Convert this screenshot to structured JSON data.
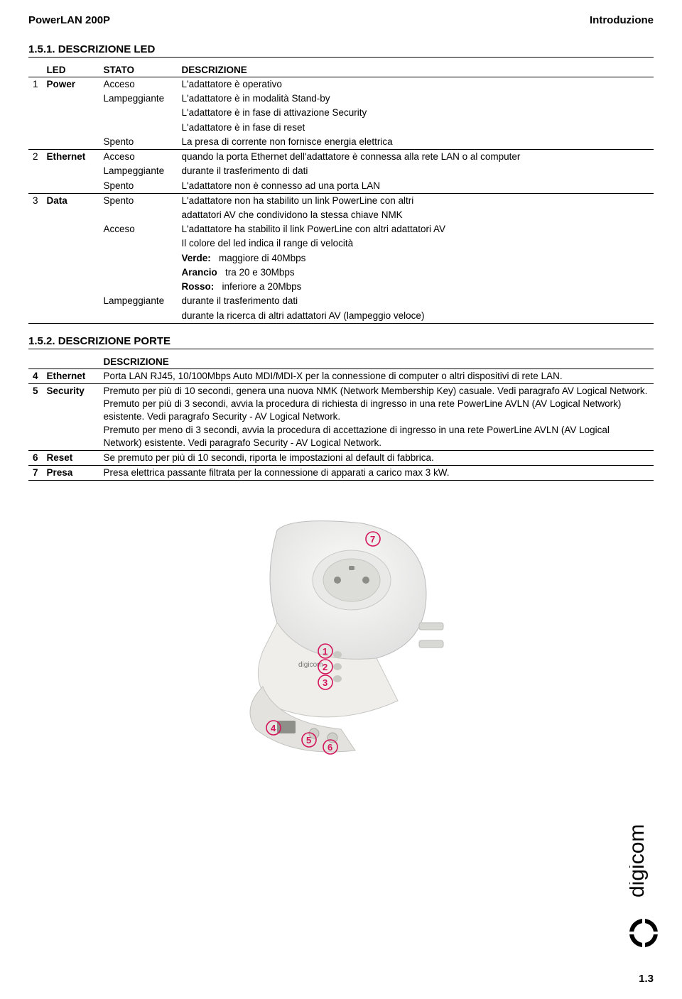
{
  "header": {
    "left": "PowerLAN 200P",
    "right": "Introduzione"
  },
  "section1": {
    "title": "1.5.1. DESCRIZIONE LED",
    "cols": {
      "c1": "LED",
      "c2": "STATO",
      "c3": "DESCRIZIONE"
    },
    "rows": [
      {
        "idx": "1",
        "led": "Power",
        "stato": "Acceso",
        "desc": "L'adattatore è operativo"
      },
      {
        "idx": "",
        "led": "",
        "stato": "Lampeggiante",
        "desc": "L'adattatore è in modalità Stand-by"
      },
      {
        "idx": "",
        "led": "",
        "stato": "",
        "desc": "L'adattatore è in fase di attivazione Security"
      },
      {
        "idx": "",
        "led": "",
        "stato": "",
        "desc": "L'adattatore è in fase di reset"
      },
      {
        "idx": "",
        "led": "",
        "stato": "Spento",
        "desc": "La presa di corrente non fornisce energia elettrica",
        "last": true
      },
      {
        "idx": "2",
        "led": "Ethernet",
        "stato": "Acceso",
        "desc": "quando la porta Ethernet dell'adattatore è connessa alla rete LAN o al computer"
      },
      {
        "idx": "",
        "led": "",
        "stato": "Lampeggiante",
        "desc": "durante il trasferimento di dati"
      },
      {
        "idx": "",
        "led": "",
        "stato": "Spento",
        "desc": "L'adattatore non è connesso ad una porta LAN",
        "last": true
      },
      {
        "idx": "3",
        "led": "Data",
        "stato": "Spento",
        "desc": "L'adattatore non ha stabilito un link PowerLine con altri"
      },
      {
        "idx": "",
        "led": "",
        "stato": "",
        "desc": "adattatori AV che condividono la stessa chiave NMK"
      },
      {
        "idx": "",
        "led": "",
        "stato": "Acceso",
        "desc": "L'adattatore ha stabilito il link PowerLine con altri adattatori AV"
      },
      {
        "idx": "",
        "led": "",
        "stato": "",
        "desc": "Il colore del led indica il range di velocità"
      }
    ],
    "speed_lines": [
      {
        "label": "Verde:",
        "text": "maggiore di 40Mbps"
      },
      {
        "label": "Arancio",
        "text": "tra 20 e 30Mbps"
      },
      {
        "label": "Rosso:",
        "text": "inferiore a 20Mbps"
      }
    ],
    "tail": [
      {
        "stato": "Lampeggiante",
        "desc": "durante il trasferimento dati"
      },
      {
        "stato": "",
        "desc": "durante la ricerca di altri adattatori AV (lampeggio veloce)",
        "last": true
      }
    ]
  },
  "section2": {
    "title": "1.5.2. DESCRIZIONE PORTE",
    "col_desc": "DESCRIZIONE",
    "rows": [
      {
        "idx": "4",
        "name": "Ethernet",
        "desc": "Porta LAN RJ45, 10/100Mbps Auto MDI/MDI-X per la connessione di computer o altri dispositivi di rete LAN."
      },
      {
        "idx": "5",
        "name": "Security",
        "desc": "Premuto per più di 10 secondi, genera una nuova NMK (Network Membership Key) casuale. Vedi paragrafo AV Logical Network.\nPremuto per più di 3 secondi, avvia la procedura di richiesta di ingresso in una rete PowerLine AVLN (AV Logical Network) esistente. Vedi paragrafo Security - AV Logical Network.\nPremuto per meno di 3 secondi, avvia la procedura di accettazione di ingresso in una rete PowerLine AVLN (AV Logical Network) esistente. Vedi paragrafo Security - AV Logical Network."
      },
      {
        "idx": "6",
        "name": "Reset",
        "desc": "Se premuto per più di 10 secondi, riporta le impostazioni al default di fabbrica."
      },
      {
        "idx": "7",
        "name": "Presa",
        "desc": "Presa elettrica passante filtrata per la connessione di apparati a carico max 3 kW."
      }
    ]
  },
  "callouts": {
    "c1": "1",
    "c2": "2",
    "c3": "3",
    "c4": "4",
    "c5": "5",
    "c6": "6",
    "c7": "7",
    "color": "#d4145a"
  },
  "logo_text": "digicom",
  "page_number": "1.3",
  "colors": {
    "background": "#ffffff",
    "text": "#000000",
    "callout_stroke": "#d4145a",
    "device_body": "#f2f2f0",
    "device_shadow": "#cfcfcb",
    "socket_grey": "#b8b8b4"
  }
}
